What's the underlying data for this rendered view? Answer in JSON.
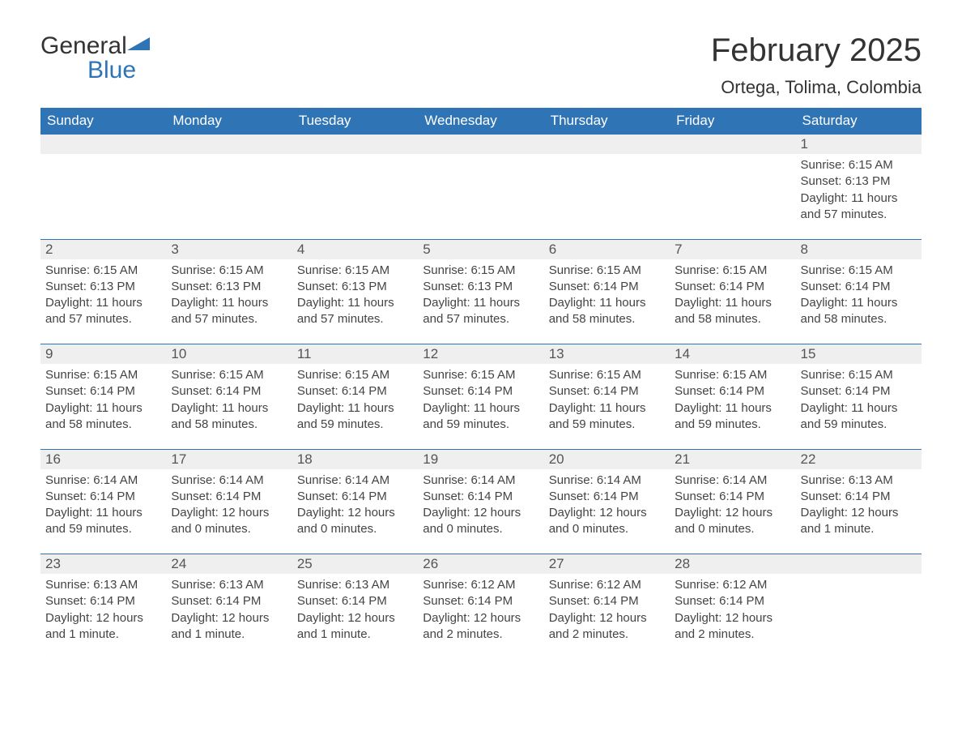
{
  "brand": {
    "word1": "General",
    "word2": "Blue",
    "accent_color": "#2f74b5"
  },
  "title": "February 2025",
  "location": "Ortega, Tolima, Colombia",
  "colors": {
    "header_bg": "#2f74b5",
    "header_text": "#ffffff",
    "daynum_bg": "#efefef",
    "row_border": "#2f74b5",
    "body_text": "#444444",
    "page_bg": "#ffffff"
  },
  "day_headers": [
    "Sunday",
    "Monday",
    "Tuesday",
    "Wednesday",
    "Thursday",
    "Friday",
    "Saturday"
  ],
  "weeks": [
    [
      null,
      null,
      null,
      null,
      null,
      null,
      {
        "n": "1",
        "sunrise": "6:15 AM",
        "sunset": "6:13 PM",
        "daylight": "11 hours and 57 minutes."
      }
    ],
    [
      {
        "n": "2",
        "sunrise": "6:15 AM",
        "sunset": "6:13 PM",
        "daylight": "11 hours and 57 minutes."
      },
      {
        "n": "3",
        "sunrise": "6:15 AM",
        "sunset": "6:13 PM",
        "daylight": "11 hours and 57 minutes."
      },
      {
        "n": "4",
        "sunrise": "6:15 AM",
        "sunset": "6:13 PM",
        "daylight": "11 hours and 57 minutes."
      },
      {
        "n": "5",
        "sunrise": "6:15 AM",
        "sunset": "6:13 PM",
        "daylight": "11 hours and 57 minutes."
      },
      {
        "n": "6",
        "sunrise": "6:15 AM",
        "sunset": "6:14 PM",
        "daylight": "11 hours and 58 minutes."
      },
      {
        "n": "7",
        "sunrise": "6:15 AM",
        "sunset": "6:14 PM",
        "daylight": "11 hours and 58 minutes."
      },
      {
        "n": "8",
        "sunrise": "6:15 AM",
        "sunset": "6:14 PM",
        "daylight": "11 hours and 58 minutes."
      }
    ],
    [
      {
        "n": "9",
        "sunrise": "6:15 AM",
        "sunset": "6:14 PM",
        "daylight": "11 hours and 58 minutes."
      },
      {
        "n": "10",
        "sunrise": "6:15 AM",
        "sunset": "6:14 PM",
        "daylight": "11 hours and 58 minutes."
      },
      {
        "n": "11",
        "sunrise": "6:15 AM",
        "sunset": "6:14 PM",
        "daylight": "11 hours and 59 minutes."
      },
      {
        "n": "12",
        "sunrise": "6:15 AM",
        "sunset": "6:14 PM",
        "daylight": "11 hours and 59 minutes."
      },
      {
        "n": "13",
        "sunrise": "6:15 AM",
        "sunset": "6:14 PM",
        "daylight": "11 hours and 59 minutes."
      },
      {
        "n": "14",
        "sunrise": "6:15 AM",
        "sunset": "6:14 PM",
        "daylight": "11 hours and 59 minutes."
      },
      {
        "n": "15",
        "sunrise": "6:15 AM",
        "sunset": "6:14 PM",
        "daylight": "11 hours and 59 minutes."
      }
    ],
    [
      {
        "n": "16",
        "sunrise": "6:14 AM",
        "sunset": "6:14 PM",
        "daylight": "11 hours and 59 minutes."
      },
      {
        "n": "17",
        "sunrise": "6:14 AM",
        "sunset": "6:14 PM",
        "daylight": "12 hours and 0 minutes."
      },
      {
        "n": "18",
        "sunrise": "6:14 AM",
        "sunset": "6:14 PM",
        "daylight": "12 hours and 0 minutes."
      },
      {
        "n": "19",
        "sunrise": "6:14 AM",
        "sunset": "6:14 PM",
        "daylight": "12 hours and 0 minutes."
      },
      {
        "n": "20",
        "sunrise": "6:14 AM",
        "sunset": "6:14 PM",
        "daylight": "12 hours and 0 minutes."
      },
      {
        "n": "21",
        "sunrise": "6:14 AM",
        "sunset": "6:14 PM",
        "daylight": "12 hours and 0 minutes."
      },
      {
        "n": "22",
        "sunrise": "6:13 AM",
        "sunset": "6:14 PM",
        "daylight": "12 hours and 1 minute."
      }
    ],
    [
      {
        "n": "23",
        "sunrise": "6:13 AM",
        "sunset": "6:14 PM",
        "daylight": "12 hours and 1 minute."
      },
      {
        "n": "24",
        "sunrise": "6:13 AM",
        "sunset": "6:14 PM",
        "daylight": "12 hours and 1 minute."
      },
      {
        "n": "25",
        "sunrise": "6:13 AM",
        "sunset": "6:14 PM",
        "daylight": "12 hours and 1 minute."
      },
      {
        "n": "26",
        "sunrise": "6:12 AM",
        "sunset": "6:14 PM",
        "daylight": "12 hours and 2 minutes."
      },
      {
        "n": "27",
        "sunrise": "6:12 AM",
        "sunset": "6:14 PM",
        "daylight": "12 hours and 2 minutes."
      },
      {
        "n": "28",
        "sunrise": "6:12 AM",
        "sunset": "6:14 PM",
        "daylight": "12 hours and 2 minutes."
      },
      null
    ]
  ],
  "labels": {
    "sunrise": "Sunrise: ",
    "sunset": "Sunset: ",
    "daylight": "Daylight: "
  }
}
